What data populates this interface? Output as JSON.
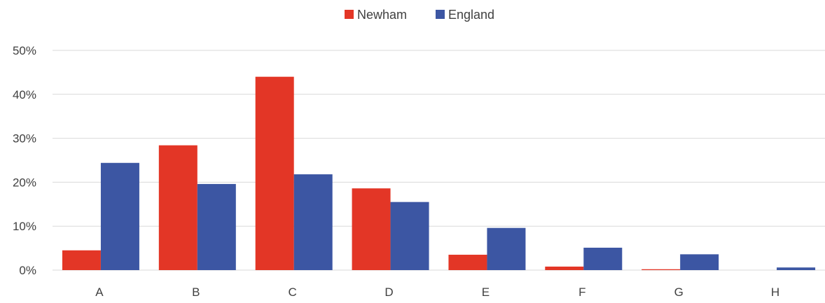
{
  "chart_data": {
    "type": "bar",
    "title": "",
    "xlabel": "",
    "ylabel": "",
    "categories": [
      "A",
      "B",
      "C",
      "D",
      "E",
      "F",
      "G",
      "H"
    ],
    "series": [
      {
        "name": "Newham",
        "color": "#e33626",
        "values": [
          4.5,
          28.4,
          44.0,
          18.6,
          3.5,
          0.8,
          0.2,
          0.0
        ]
      },
      {
        "name": "England",
        "color": "#3c56a3",
        "values": [
          24.4,
          19.6,
          21.8,
          15.5,
          9.6,
          5.1,
          3.6,
          0.6
        ]
      }
    ],
    "ylim": [
      0,
      50
    ],
    "y_ticks": [
      "0%",
      "10%",
      "20%",
      "30%",
      "40%",
      "50%"
    ],
    "grid": true,
    "legend_position": "top-center"
  }
}
